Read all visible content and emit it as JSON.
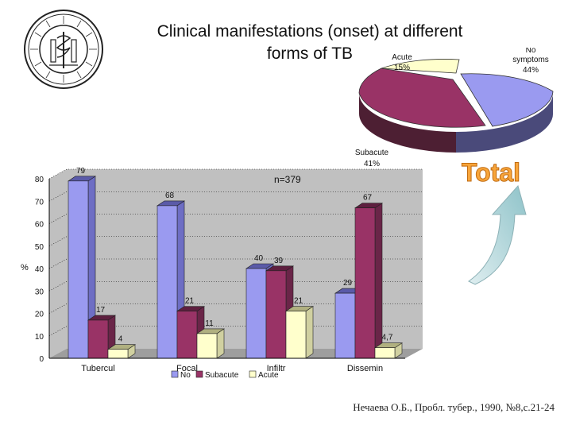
{
  "slide": {
    "title_line1": "Clinical manifestations (onset) at different",
    "title_line2": "forms of TB",
    "source": "Нечаева О.Б., Пробл. тубер., 1990, №8,с.21-24",
    "total_label": "Total"
  },
  "colors": {
    "no": "#9A9AF0",
    "subacute": "#993366",
    "acute": "#FFFFCC",
    "chart_bg": "#C0C0C0"
  },
  "chart_data": [
    {
      "type": "bar",
      "title": "",
      "annotation": "n=379",
      "categories": [
        "Tubercul",
        "Focal",
        "Infiltr",
        "Dissemin"
      ],
      "series": [
        {
          "name": "No",
          "values": [
            79,
            68,
            40,
            29
          ],
          "labels": [
            "79",
            "68",
            "40",
            "29"
          ]
        },
        {
          "name": "Subacute",
          "values": [
            17,
            21,
            39,
            67
          ],
          "labels": [
            "17",
            "21",
            "39",
            "67"
          ]
        },
        {
          "name": "Acute",
          "values": [
            4,
            11,
            21,
            4.7
          ],
          "labels": [
            "4",
            "11",
            "21",
            "4,7"
          ]
        }
      ],
      "ylabel": "%",
      "ylim": [
        0,
        80
      ],
      "yticks": [
        "0",
        "10",
        "20",
        "30",
        "40",
        "50",
        "60",
        "70",
        "80"
      ],
      "legend": "bottom"
    },
    {
      "type": "pie",
      "slices": [
        {
          "name": "No symptoms",
          "label_lines": [
            "No",
            "symptoms",
            "44%"
          ],
          "value": 44
        },
        {
          "name": "Subacute",
          "label_lines": [
            "Subacute",
            "41%"
          ],
          "value": 41
        },
        {
          "name": "Acute",
          "label_lines": [
            "Acute",
            "15%"
          ],
          "value": 15
        }
      ]
    }
  ]
}
